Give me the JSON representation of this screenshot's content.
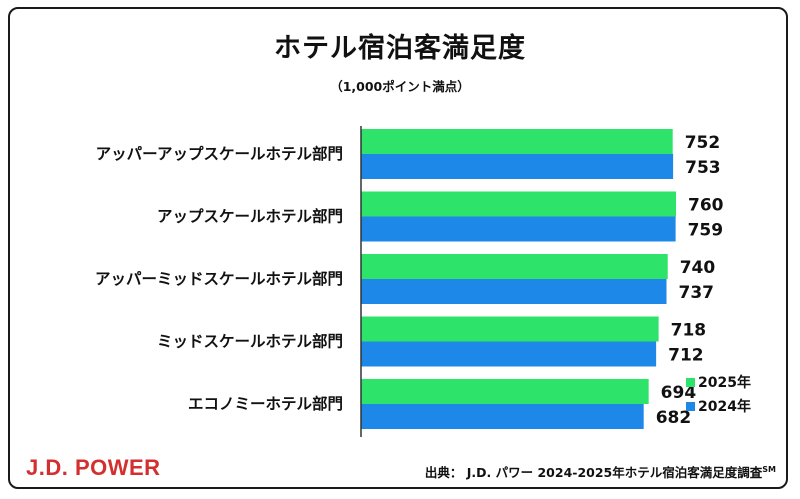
{
  "chart_data": {
    "type": "bar",
    "orientation": "horizontal",
    "title": "ホテル宿泊客満足度",
    "subtitle": "（1,000ポイント満点）",
    "categories": [
      "アッパーアップスケールホテル部門",
      "アップスケールホテル部門",
      "アッパーミッドスケールホテル部門",
      "ミッドスケールホテル部門",
      "エコノミーホテル部門"
    ],
    "series": [
      {
        "name": "2025年",
        "color": "#2ee36a",
        "values": [
          752,
          760,
          740,
          718,
          694
        ]
      },
      {
        "name": "2024年",
        "color": "#1e88e8",
        "values": [
          753,
          759,
          737,
          712,
          682
        ]
      }
    ],
    "xlim": [
      0,
      850
    ],
    "grid": false,
    "legend_position": "bottom-right"
  },
  "footer": {
    "logo": "J.D. POWER",
    "source": "出典： J.D. パワー 2024-2025年ホテル宿泊客満足度調査",
    "source_mark": "SM"
  }
}
